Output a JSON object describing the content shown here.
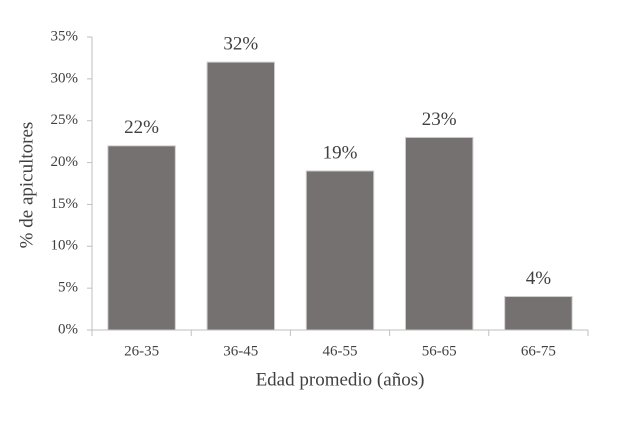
{
  "chart_data": {
    "type": "bar",
    "categories": [
      "26-35",
      "36-45",
      "46-55",
      "56-65",
      "66-75"
    ],
    "values": [
      22,
      32,
      19,
      23,
      4
    ],
    "value_labels": [
      "22%",
      "32%",
      "19%",
      "23%",
      "4%"
    ],
    "color": "#767171",
    "x_label": "Edad promedio (años)",
    "y_label": "% de apicultores",
    "ylim": [
      0,
      35
    ],
    "yticks": [
      {
        "value": 0,
        "label": "0%"
      },
      {
        "value": 5,
        "label": "5%"
      },
      {
        "value": 10,
        "label": "10%"
      },
      {
        "value": 15,
        "label": "15%"
      },
      {
        "value": 20,
        "label": "20%"
      },
      {
        "value": 25,
        "label": "25%"
      },
      {
        "value": 30,
        "label": "30%"
      },
      {
        "value": 35,
        "label": "35%"
      }
    ],
    "grid": false
  }
}
